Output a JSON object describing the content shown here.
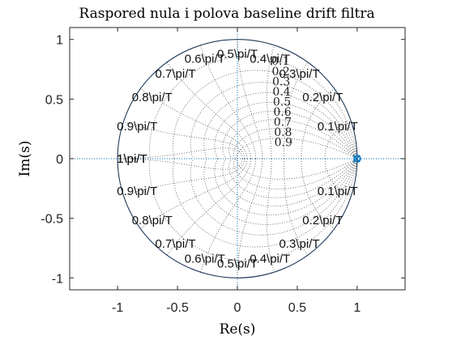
{
  "chart_data": {
    "type": "scatter",
    "title": "Raspored nula i polova baseline drift filtra",
    "xlabel": "Re(s)",
    "ylabel": "Im(s)",
    "xlim": [
      -1.4,
      1.4
    ],
    "ylim": [
      -1.1,
      1.1
    ],
    "xticks": [
      "-1",
      "-0.5",
      "0",
      "0.5",
      "1"
    ],
    "yticks": [
      "1",
      "0.5",
      "0",
      "-0.5",
      "-1"
    ],
    "grid": "zgrid",
    "unit_circle": true,
    "freq_labels": [
      "0.1\\pi/T",
      "0.2\\pi/T",
      "0.3\\pi/T",
      "0.4\\pi/T",
      "0.5\\pi/T",
      "0.6\\pi/T",
      "0.7\\pi/T",
      "0.8\\pi/T",
      "0.9\\pi/T",
      "1\\pi/T"
    ],
    "damping_labels": [
      "0.1",
      "0.2",
      "0.3",
      "0.4",
      "0.5",
      "0.6",
      "0.7",
      "0.8",
      "0.9"
    ],
    "zeros": [
      {
        "re": 1.0,
        "im": 0.0
      }
    ],
    "poles": [
      {
        "re": 0.995,
        "im": 0.0
      }
    ],
    "marker_color": "#0072BD",
    "circle_color": "#1f3a5a"
  }
}
